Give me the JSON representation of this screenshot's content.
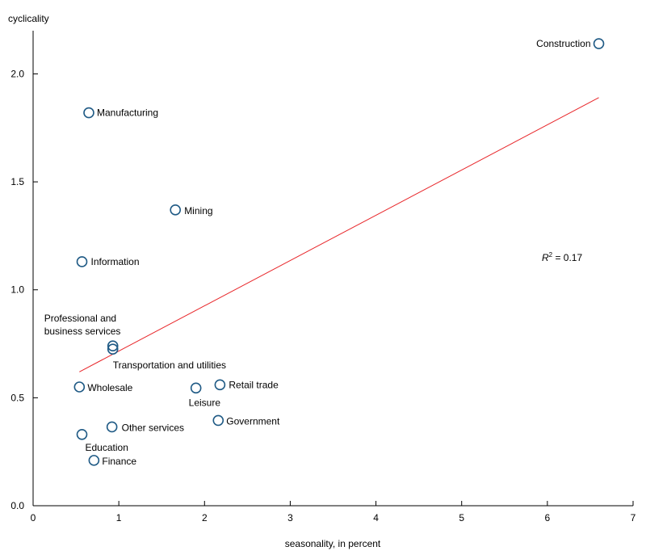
{
  "chart_data": {
    "type": "scatter",
    "xlabel": "seasonality, in percent",
    "ylabel": "cyclicality",
    "xlim": [
      0,
      7
    ],
    "ylim": [
      0,
      2.2
    ],
    "x_ticks": [
      "0",
      "1",
      "2",
      "3",
      "4",
      "5",
      "6",
      "7"
    ],
    "y_ticks": [
      "0.0",
      "0.5",
      "1.0",
      "1.5",
      "2.0"
    ],
    "grid": false,
    "points": [
      {
        "label": "Construction",
        "x": 6.6,
        "y": 2.14
      },
      {
        "label": "Manufacturing",
        "x": 0.65,
        "y": 1.82
      },
      {
        "label": "Mining",
        "x": 1.66,
        "y": 1.37
      },
      {
        "label": "Information",
        "x": 0.57,
        "y": 1.13
      },
      {
        "label": "Professional and business services",
        "x": 0.93,
        "y": 0.74
      },
      {
        "label": "Transportation and utilities",
        "x": 0.93,
        "y": 0.725
      },
      {
        "label": "Wholesale",
        "x": 0.54,
        "y": 0.55
      },
      {
        "label": "Retail trade",
        "x": 2.18,
        "y": 0.56
      },
      {
        "label": "Leisure",
        "x": 1.9,
        "y": 0.545
      },
      {
        "label": "Government",
        "x": 2.16,
        "y": 0.395
      },
      {
        "label": "Other services",
        "x": 0.92,
        "y": 0.365
      },
      {
        "label": "Education",
        "x": 0.57,
        "y": 0.33
      },
      {
        "label": "Finance",
        "x": 0.71,
        "y": 0.21
      }
    ],
    "trendline": {
      "x": [
        0.54,
        6.6
      ],
      "y": [
        0.62,
        1.89
      ]
    },
    "annotation": {
      "r_italic": "R",
      "r_sup": "2",
      "r_rest": " = 0.17"
    },
    "colors": {
      "marker": "#1f5a85",
      "trendline": "#e8262a",
      "axis": "#000000"
    }
  }
}
